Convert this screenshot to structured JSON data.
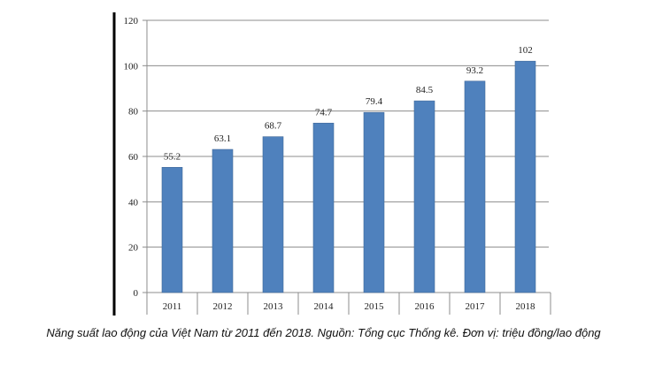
{
  "chart_data": {
    "type": "bar",
    "categories": [
      "2011",
      "2012",
      "2013",
      "2014",
      "2015",
      "2016",
      "2017",
      "2018"
    ],
    "values": [
      55.2,
      63.1,
      68.7,
      74.7,
      79.4,
      84.5,
      93.2,
      102
    ],
    "value_labels": [
      "55.2",
      "63.1",
      "68.7",
      "74.7",
      "79.4",
      "84.5",
      "93.2",
      "102"
    ],
    "yticks": [
      "0",
      "20",
      "40",
      "60",
      "80",
      "100",
      "120"
    ],
    "ylim": [
      0,
      120
    ],
    "grid": true,
    "legend": "none",
    "bar_color": "#4f81bd",
    "caption": "Năng suất lao động của Việt Nam từ 2011 đến 2018. Nguồn: Tổng cục Thống kê. Đơn vị: triệu đồng/lao động"
  }
}
